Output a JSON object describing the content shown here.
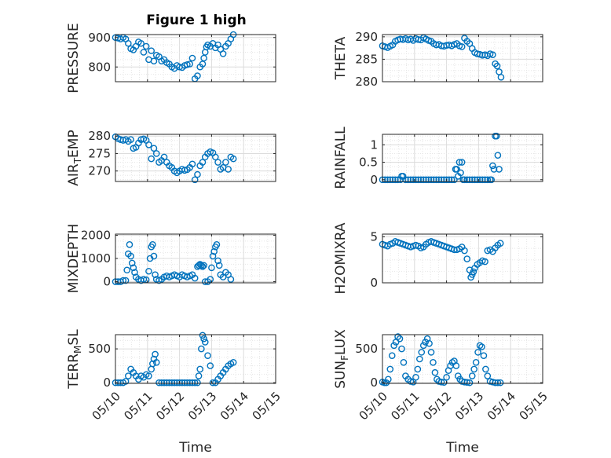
{
  "figure": {
    "title": "Figure 1 high",
    "marker_color": "#0072BD"
  },
  "chart_data": [
    {
      "type": "scatter",
      "ylabel": "PRESSURE",
      "ylim": [
        750,
        910
      ],
      "yticks": [
        800,
        900
      ],
      "xlim": [
        0,
        5
      ],
      "xticklabels": [],
      "xlabel": "",
      "grid": true,
      "x": [
        0.0,
        0.08,
        0.16,
        0.24,
        0.32,
        0.4,
        0.48,
        0.56,
        0.64,
        0.72,
        0.8,
        0.88,
        0.96,
        1.04,
        1.12,
        1.2,
        1.28,
        1.36,
        1.44,
        1.52,
        1.6,
        1.68,
        1.76,
        1.84,
        1.92,
        2.0,
        2.08,
        2.16,
        2.24,
        2.32,
        2.4,
        2.48,
        2.56,
        2.64,
        2.72,
        2.76,
        2.8,
        2.84,
        2.88,
        2.96,
        3.04,
        3.12,
        3.2,
        3.28,
        3.36,
        3.44,
        3.52,
        3.6,
        3.68
      ],
      "y": [
        900,
        898,
        895,
        900,
        895,
        880,
        862,
        858,
        870,
        885,
        880,
        850,
        870,
        825,
        855,
        820,
        840,
        835,
        820,
        825,
        815,
        810,
        800,
        795,
        805,
        800,
        798,
        805,
        808,
        810,
        830,
        760,
        770,
        800,
        810,
        830,
        850,
        868,
        875,
        870,
        880,
        865,
        875,
        860,
        845,
        870,
        880,
        895,
        910
      ]
    },
    {
      "type": "scatter",
      "ylabel": "THETA",
      "ylim": [
        280,
        290.5
      ],
      "yticks": [
        280,
        285,
        290
      ],
      "xlim": [
        0,
        5
      ],
      "xticklabels": [],
      "xlabel": "",
      "grid": true,
      "x": [
        0.0,
        0.08,
        0.16,
        0.24,
        0.32,
        0.4,
        0.48,
        0.56,
        0.64,
        0.72,
        0.8,
        0.88,
        0.96,
        1.04,
        1.12,
        1.2,
        1.28,
        1.36,
        1.44,
        1.52,
        1.6,
        1.68,
        1.76,
        1.84,
        1.92,
        2.0,
        2.08,
        2.16,
        2.24,
        2.32,
        2.4,
        2.48,
        2.56,
        2.64,
        2.72,
        2.8,
        2.88,
        2.96,
        3.04,
        3.12,
        3.2,
        3.28,
        3.36,
        3.44,
        3.52,
        3.58,
        3.64,
        3.7
      ],
      "y": [
        288.0,
        287.8,
        287.6,
        287.9,
        288.2,
        289.0,
        289.3,
        289.5,
        289.4,
        289.6,
        289.3,
        289.5,
        289.2,
        289.6,
        289.4,
        289.3,
        289.8,
        289.5,
        289.2,
        289.0,
        288.5,
        288.2,
        288.3,
        288.0,
        287.9,
        288.1,
        288.2,
        288.0,
        288.3,
        288.5,
        288.0,
        287.8,
        289.7,
        289.0,
        288.5,
        287.4,
        286.5,
        286.2,
        286.1,
        285.9,
        286.0,
        285.8,
        286.2,
        286.0,
        284.0,
        283.5,
        282.2,
        281.0
      ]
    },
    {
      "type": "scatter",
      "ylabel": "AIR_TEMP",
      "ylim": [
        267,
        280.5
      ],
      "yticks": [
        270,
        275,
        280
      ],
      "xlim": [
        0,
        5
      ],
      "xticklabels": [],
      "xlabel": "",
      "grid": true,
      "x": [
        0.0,
        0.08,
        0.16,
        0.24,
        0.32,
        0.4,
        0.48,
        0.56,
        0.64,
        0.72,
        0.8,
        0.88,
        0.96,
        1.04,
        1.12,
        1.2,
        1.28,
        1.36,
        1.44,
        1.52,
        1.6,
        1.68,
        1.76,
        1.84,
        1.92,
        2.0,
        2.08,
        2.16,
        2.24,
        2.32,
        2.4,
        2.48,
        2.56,
        2.64,
        2.72,
        2.8,
        2.88,
        2.96,
        3.04,
        3.12,
        3.2,
        3.28,
        3.36,
        3.44,
        3.52,
        3.6,
        3.68
      ],
      "y": [
        279.8,
        279.3,
        279.0,
        278.8,
        279.0,
        278.5,
        279.0,
        276.5,
        276.8,
        278.0,
        279.0,
        279.2,
        278.8,
        277.5,
        273.5,
        276.5,
        275.0,
        272.5,
        273.0,
        274.0,
        272.5,
        271.5,
        271.0,
        270.0,
        269.5,
        270.0,
        270.5,
        270.2,
        270.4,
        271.0,
        272.0,
        267.5,
        269.0,
        271.5,
        272.5,
        274.0,
        275.0,
        275.5,
        275.2,
        274.0,
        272.5,
        270.5,
        271.0,
        272.5,
        270.5,
        274.0,
        273.5
      ]
    },
    {
      "type": "scatter",
      "ylabel": "RAINFALL",
      "ylim": [
        -0.05,
        1.3
      ],
      "yticks": [
        0,
        0.5,
        1
      ],
      "xlim": [
        0,
        5
      ],
      "xticklabels": [],
      "xlabel": "",
      "grid": true,
      "x": [
        0.0,
        0.08,
        0.16,
        0.24,
        0.32,
        0.4,
        0.48,
        0.56,
        0.6,
        0.64,
        0.72,
        0.8,
        0.88,
        0.96,
        1.04,
        1.12,
        1.2,
        1.28,
        1.36,
        1.44,
        1.52,
        1.6,
        1.68,
        1.76,
        1.84,
        1.92,
        2.0,
        2.08,
        2.16,
        2.24,
        2.28,
        2.32,
        2.36,
        2.4,
        2.44,
        2.48,
        2.52,
        2.56,
        2.64,
        2.72,
        2.8,
        2.88,
        2.96,
        3.04,
        3.12,
        3.2,
        3.28,
        3.36,
        3.4,
        3.44,
        3.48,
        3.52,
        3.56,
        3.6,
        3.64
      ],
      "y": [
        0,
        0,
        0,
        0,
        0,
        0,
        0,
        0,
        0.1,
        0.1,
        0,
        0,
        0,
        0,
        0,
        0,
        0,
        0,
        0,
        0,
        0,
        0,
        0,
        0,
        0,
        0,
        0,
        0,
        0,
        0,
        0.3,
        0.3,
        0.1,
        0.5,
        0.2,
        0.5,
        0,
        0,
        0,
        0,
        0,
        0,
        0,
        0,
        0,
        0,
        0,
        0,
        0,
        0.4,
        0.3,
        1.25,
        1.25,
        0.7,
        0.3
      ]
    },
    {
      "type": "scatter",
      "ylabel": "MIXDEPTH",
      "ylim": [
        -50,
        2050
      ],
      "yticks": [
        0,
        1000,
        2000
      ],
      "xlim": [
        0,
        5
      ],
      "xticklabels": [],
      "xlabel": "",
      "grid": true,
      "x": [
        0.0,
        0.08,
        0.16,
        0.24,
        0.32,
        0.36,
        0.4,
        0.44,
        0.48,
        0.52,
        0.56,
        0.6,
        0.64,
        0.72,
        0.8,
        0.88,
        0.96,
        1.04,
        1.08,
        1.12,
        1.16,
        1.2,
        1.24,
        1.28,
        1.36,
        1.44,
        1.52,
        1.6,
        1.68,
        1.76,
        1.84,
        1.92,
        2.0,
        2.08,
        2.16,
        2.24,
        2.32,
        2.4,
        2.48,
        2.56,
        2.6,
        2.64,
        2.68,
        2.72,
        2.76,
        2.8,
        2.88,
        2.96,
        3.0,
        3.04,
        3.08,
        3.12,
        3.16,
        3.2,
        3.24,
        3.28,
        3.36,
        3.44,
        3.52,
        3.6
      ],
      "y": [
        0,
        0,
        0,
        50,
        50,
        500,
        1200,
        1600,
        1100,
        800,
        600,
        400,
        200,
        100,
        50,
        100,
        80,
        450,
        1000,
        1500,
        1600,
        1100,
        300,
        100,
        50,
        100,
        200,
        250,
        200,
        250,
        300,
        250,
        200,
        300,
        250,
        200,
        250,
        300,
        150,
        650,
        700,
        750,
        700,
        650,
        700,
        0,
        0,
        100,
        600,
        1100,
        1300,
        1500,
        1600,
        900,
        700,
        300,
        200,
        400,
        300,
        100
      ]
    },
    {
      "type": "scatter",
      "ylabel": "H2OMIXRA",
      "ylim": [
        0,
        5.3
      ],
      "yticks": [
        0,
        5
      ],
      "xlim": [
        0,
        5
      ],
      "xticklabels": [],
      "xlabel": "",
      "grid": true,
      "x": [
        0.0,
        0.08,
        0.16,
        0.24,
        0.32,
        0.4,
        0.48,
        0.56,
        0.64,
        0.72,
        0.8,
        0.88,
        0.96,
        1.04,
        1.12,
        1.2,
        1.28,
        1.36,
        1.44,
        1.52,
        1.6,
        1.68,
        1.76,
        1.84,
        1.92,
        2.0,
        2.08,
        2.16,
        2.24,
        2.32,
        2.4,
        2.48,
        2.56,
        2.64,
        2.72,
        2.76,
        2.8,
        2.84,
        2.88,
        2.96,
        3.04,
        3.12,
        3.2,
        3.28,
        3.36,
        3.44,
        3.52,
        3.6,
        3.68
      ],
      "y": [
        4.2,
        4.1,
        4.0,
        4.2,
        4.3,
        4.5,
        4.4,
        4.3,
        4.2,
        4.1,
        4.0,
        3.9,
        4.0,
        4.1,
        4.0,
        3.8,
        3.9,
        4.2,
        4.4,
        4.5,
        4.4,
        4.3,
        4.2,
        4.1,
        4.0,
        3.9,
        3.8,
        3.7,
        3.6,
        3.6,
        3.7,
        3.9,
        3.5,
        2.6,
        1.4,
        0.6,
        0.9,
        1.2,
        1.6,
        2.0,
        2.2,
        2.4,
        2.3,
        3.5,
        3.6,
        3.4,
        3.8,
        4.1,
        4.3
      ]
    },
    {
      "type": "scatter",
      "ylabel": "TERR_MSL",
      "ylim": [
        -10,
        710
      ],
      "yticks": [
        0,
        500
      ],
      "xlim": [
        0,
        5
      ],
      "xticklabels": [
        "05/10",
        "05/11",
        "05/12",
        "05/13",
        "05/14",
        "05/15"
      ],
      "xlabel": "Time",
      "grid": true,
      "x": [
        0.0,
        0.08,
        0.16,
        0.24,
        0.32,
        0.4,
        0.48,
        0.56,
        0.64,
        0.72,
        0.8,
        0.88,
        0.96,
        1.04,
        1.12,
        1.16,
        1.2,
        1.24,
        1.28,
        1.36,
        1.44,
        1.52,
        1.6,
        1.68,
        1.76,
        1.84,
        1.92,
        2.0,
        2.08,
        2.16,
        2.24,
        2.32,
        2.4,
        2.48,
        2.56,
        2.6,
        2.64,
        2.68,
        2.72,
        2.76,
        2.8,
        2.88,
        2.96,
        3.04,
        3.12,
        3.2,
        3.28,
        3.36,
        3.44,
        3.52,
        3.6,
        3.68
      ],
      "y": [
        0,
        0,
        0,
        0,
        20,
        100,
        200,
        150,
        100,
        50,
        100,
        80,
        120,
        100,
        200,
        280,
        350,
        420,
        300,
        0,
        0,
        0,
        0,
        0,
        0,
        0,
        0,
        0,
        0,
        0,
        0,
        0,
        0,
        0,
        0,
        100,
        200,
        500,
        700,
        650,
        600,
        400,
        250,
        0,
        0,
        50,
        100,
        150,
        200,
        250,
        280,
        300
      ]
    },
    {
      "type": "scatter",
      "ylabel": "SUN_FLUX",
      "ylim": [
        -10,
        710
      ],
      "yticks": [
        0,
        500
      ],
      "xlim": [
        0,
        5
      ],
      "xticklabels": [
        "05/10",
        "05/11",
        "05/12",
        "05/13",
        "05/14",
        "05/15"
      ],
      "xlabel": "Time",
      "grid": true,
      "x": [
        0.0,
        0.06,
        0.12,
        0.18,
        0.24,
        0.3,
        0.36,
        0.42,
        0.48,
        0.54,
        0.6,
        0.66,
        0.72,
        0.8,
        0.88,
        0.96,
        1.04,
        1.1,
        1.16,
        1.22,
        1.28,
        1.34,
        1.4,
        1.46,
        1.52,
        1.58,
        1.64,
        1.7,
        1.76,
        1.84,
        1.92,
        2.0,
        2.06,
        2.12,
        2.18,
        2.24,
        2.3,
        2.36,
        2.42,
        2.48,
        2.56,
        2.64,
        2.72,
        2.8,
        2.86,
        2.92,
        2.98,
        3.04,
        3.1,
        3.16,
        3.22,
        3.28,
        3.36,
        3.44,
        3.52,
        3.6,
        3.68
      ],
      "y": [
        10,
        0,
        0,
        50,
        200,
        400,
        550,
        600,
        680,
        650,
        500,
        300,
        100,
        50,
        20,
        10,
        80,
        200,
        350,
        450,
        550,
        600,
        650,
        580,
        450,
        300,
        150,
        50,
        20,
        10,
        5,
        80,
        180,
        250,
        300,
        320,
        250,
        100,
        50,
        20,
        10,
        5,
        0,
        100,
        200,
        300,
        450,
        550,
        530,
        400,
        200,
        100,
        20,
        10,
        0,
        0,
        0
      ]
    }
  ]
}
